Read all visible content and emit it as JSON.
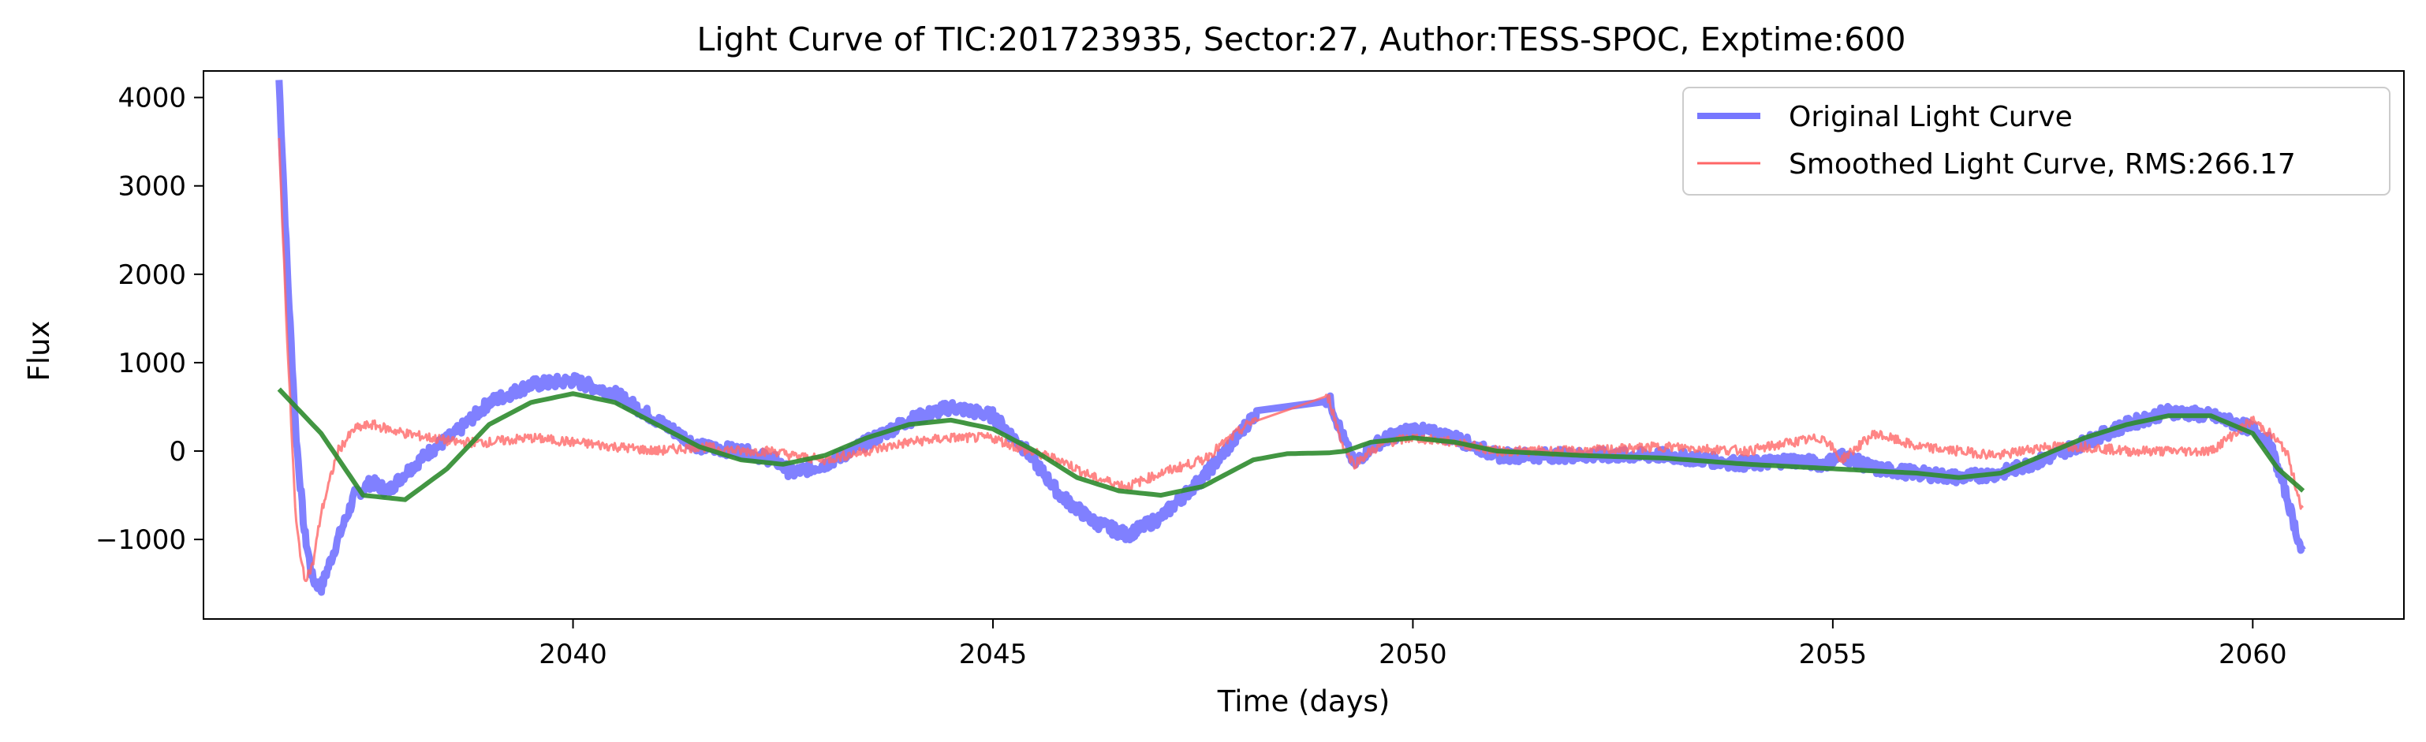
{
  "chart_data": {
    "type": "line",
    "title": "Light Curve of TIC:201723935, Sector:27, Author:TESS-SPOC, Exptime:600",
    "xlabel": "Time (days)",
    "ylabel": "Flux",
    "xlim": [
      2035.6,
      2061.8
    ],
    "ylim": [
      -1900,
      4300
    ],
    "xticks": [
      2040,
      2045,
      2050,
      2055,
      2060
    ],
    "xtick_labels": [
      "2040",
      "2045",
      "2050",
      "2055",
      "2060"
    ],
    "yticks": [
      -1000,
      0,
      1000,
      2000,
      3000,
      4000
    ],
    "ytick_labels": [
      "−1000",
      "0",
      "1000",
      "2000",
      "3000",
      "4000"
    ],
    "grid": false,
    "legend_position": "top-right",
    "series": [
      {
        "name": "Original Light Curve",
        "color": "#5555ff",
        "style": "thick-noisy",
        "x": [
          2036.5,
          2036.6,
          2036.7,
          2036.8,
          2036.9,
          2037.0,
          2037.2,
          2037.4,
          2037.6,
          2037.8,
          2038.0,
          2038.3,
          2038.6,
          2039.0,
          2039.5,
          2040.0,
          2040.5,
          2041.0,
          2041.5,
          2042.0,
          2042.4,
          2042.6,
          2043.0,
          2043.5,
          2044.0,
          2044.5,
          2045.0,
          2045.4,
          2045.8,
          2046.2,
          2046.6,
          2047.0,
          2047.5,
          2047.9,
          2048.1,
          2049.0,
          2049.15,
          2049.3,
          2049.5,
          2049.7,
          2050.0,
          2050.5,
          2051.0,
          2052.0,
          2053.0,
          2054.0,
          2054.5,
          2054.9,
          2055.1,
          2055.5,
          2056.0,
          2056.5,
          2057.0,
          2057.5,
          2058.0,
          2058.5,
          2059.0,
          2059.5,
          2060.0,
          2060.2,
          2060.4,
          2060.6
        ],
        "y": [
          4200,
          2000,
          200,
          -900,
          -1450,
          -1550,
          -1000,
          -500,
          -350,
          -450,
          -250,
          0,
          200,
          550,
          750,
          800,
          650,
          350,
          50,
          0,
          -100,
          -250,
          -150,
          100,
          350,
          500,
          400,
          0,
          -500,
          -800,
          -950,
          -750,
          -300,
          150,
          400,
          600,
          200,
          -150,
          50,
          150,
          250,
          150,
          -50,
          -50,
          -50,
          -150,
          -100,
          -150,
          -50,
          -200,
          -250,
          -300,
          -250,
          -100,
          100,
          300,
          450,
          400,
          250,
          100,
          -500,
          -1200
        ]
      },
      {
        "name": "Smoothed Light Curve, RMS:266.17",
        "color": "#ff6666",
        "style": "thin-noisy",
        "x": [
          2036.5,
          2036.6,
          2036.7,
          2036.8,
          2036.9,
          2037.0,
          2037.2,
          2037.4,
          2037.6,
          2037.8,
          2038.0,
          2038.3,
          2038.6,
          2039.0,
          2039.5,
          2040.0,
          2040.5,
          2041.0,
          2041.5,
          2042.0,
          2042.4,
          2042.6,
          2043.0,
          2043.5,
          2044.0,
          2044.5,
          2045.0,
          2045.4,
          2045.8,
          2046.2,
          2046.6,
          2047.0,
          2047.5,
          2047.9,
          2048.1,
          2049.0,
          2049.15,
          2049.3,
          2049.5,
          2049.7,
          2050.0,
          2050.5,
          2051.0,
          2052.0,
          2053.0,
          2054.0,
          2054.5,
          2054.9,
          2055.1,
          2055.5,
          2056.0,
          2056.5,
          2057.0,
          2057.5,
          2058.0,
          2058.5,
          2059.0,
          2059.5,
          2060.0,
          2060.2,
          2060.4,
          2060.6
        ],
        "y": [
          3500,
          1200,
          -800,
          -1450,
          -1300,
          -700,
          0,
          250,
          300,
          250,
          200,
          150,
          100,
          100,
          150,
          100,
          50,
          0,
          50,
          0,
          0,
          -50,
          -100,
          0,
          100,
          150,
          150,
          0,
          -100,
          -300,
          -400,
          -250,
          -100,
          200,
          350,
          600,
          100,
          -150,
          0,
          100,
          150,
          100,
          0,
          0,
          50,
          0,
          100,
          150,
          -100,
          200,
          50,
          0,
          -50,
          50,
          50,
          0,
          0,
          0,
          350,
          200,
          0,
          -700
        ]
      },
      {
        "name": "",
        "color": "#2e8b2e",
        "style": "smooth",
        "x": [
          2036.5,
          2037.0,
          2037.5,
          2038.0,
          2038.5,
          2039.0,
          2039.5,
          2040.0,
          2040.5,
          2041.0,
          2041.5,
          2042.0,
          2042.5,
          2043.0,
          2043.5,
          2044.0,
          2044.5,
          2045.0,
          2045.5,
          2046.0,
          2046.5,
          2047.0,
          2047.5,
          2047.9,
          2048.1,
          2048.5,
          2049.0,
          2049.2,
          2049.5,
          2050.0,
          2050.5,
          2051.0,
          2052.0,
          2053.0,
          2054.0,
          2055.0,
          2056.0,
          2056.5,
          2057.0,
          2057.5,
          2058.0,
          2058.5,
          2059.0,
          2059.5,
          2060.0,
          2060.3,
          2060.6
        ],
        "y": [
          700,
          200,
          -500,
          -550,
          -200,
          300,
          550,
          650,
          550,
          300,
          50,
          -100,
          -150,
          -50,
          150,
          300,
          350,
          250,
          0,
          -300,
          -450,
          -500,
          -400,
          -200,
          -100,
          -30,
          -20,
          0,
          100,
          150,
          100,
          0,
          -50,
          -80,
          -150,
          -200,
          -250,
          -300,
          -250,
          -50,
          150,
          300,
          400,
          400,
          200,
          -200,
          -450
        ]
      }
    ]
  }
}
